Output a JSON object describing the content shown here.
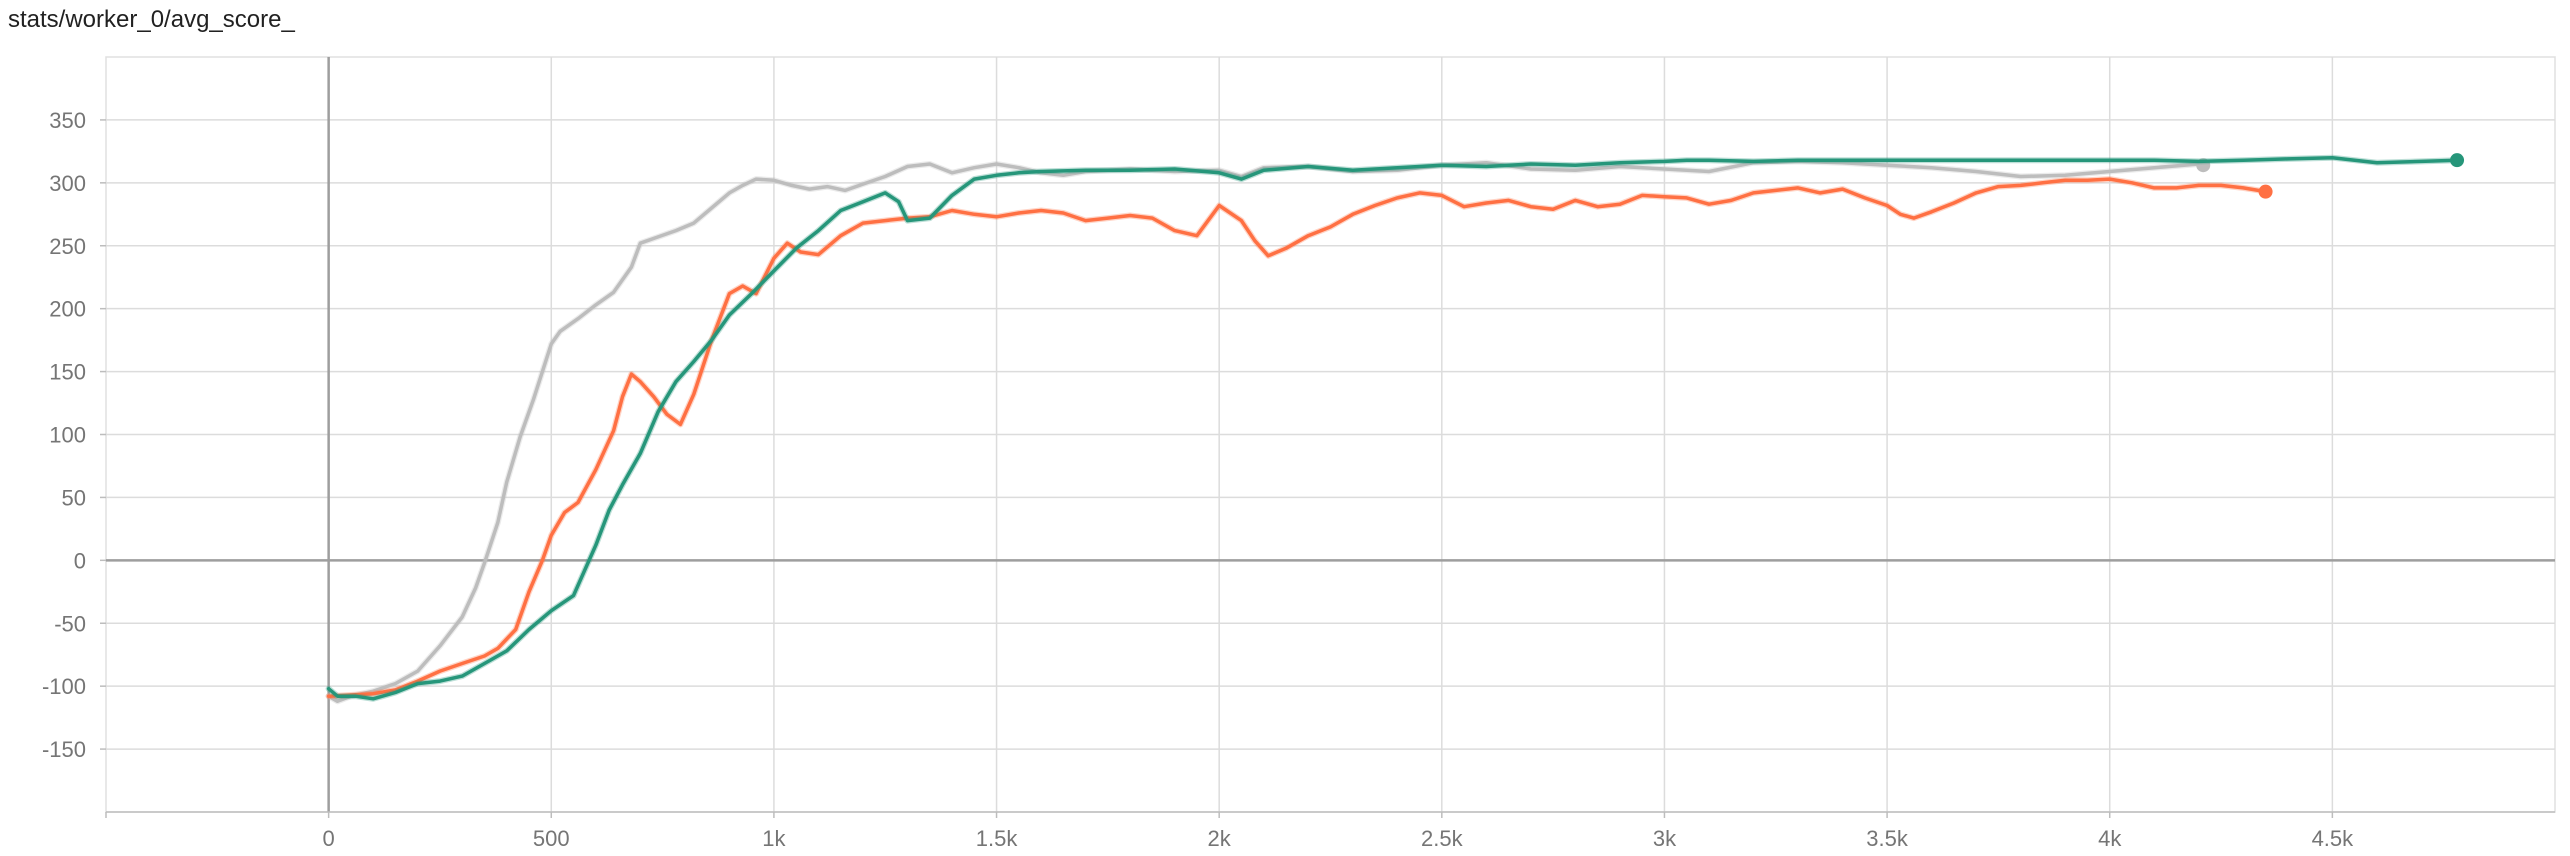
{
  "chart_title": "stats/worker_0/avg_score_",
  "chart_data": {
    "type": "line",
    "title": "stats/worker_0/avg_score_",
    "xlabel": "",
    "ylabel": "",
    "xlim": [
      -500,
      5000
    ],
    "ylim": [
      -200,
      400
    ],
    "grid": true,
    "legend": "none",
    "x_ticks": [
      0,
      500,
      1000,
      1500,
      2000,
      2500,
      3000,
      3500,
      4000,
      4500
    ],
    "x_tick_labels": [
      "0",
      "500",
      "1k",
      "1.5k",
      "2k",
      "2.5k",
      "3k",
      "3.5k",
      "4k",
      "4.5k"
    ],
    "y_ticks": [
      -150,
      -100,
      -50,
      0,
      50,
      100,
      150,
      200,
      250,
      300,
      350
    ],
    "y_tick_labels": [
      "-150",
      "-100",
      "-50",
      "0",
      "50",
      "100",
      "150",
      "200",
      "250",
      "300",
      "350"
    ],
    "series": [
      {
        "color": "#bdbdbd",
        "end_marker": true,
        "points": [
          [
            0,
            -108
          ],
          [
            20,
            -112
          ],
          [
            50,
            -108
          ],
          [
            100,
            -104
          ],
          [
            150,
            -98
          ],
          [
            200,
            -88
          ],
          [
            250,
            -68
          ],
          [
            300,
            -45
          ],
          [
            330,
            -22
          ],
          [
            350,
            -2
          ],
          [
            380,
            30
          ],
          [
            400,
            62
          ],
          [
            430,
            98
          ],
          [
            460,
            128
          ],
          [
            480,
            150
          ],
          [
            500,
            172
          ],
          [
            520,
            182
          ],
          [
            560,
            192
          ],
          [
            600,
            203
          ],
          [
            640,
            213
          ],
          [
            680,
            233
          ],
          [
            700,
            252
          ],
          [
            740,
            257
          ],
          [
            780,
            262
          ],
          [
            820,
            268
          ],
          [
            860,
            280
          ],
          [
            900,
            292
          ],
          [
            930,
            298
          ],
          [
            960,
            303
          ],
          [
            1000,
            302
          ],
          [
            1040,
            298
          ],
          [
            1080,
            295
          ],
          [
            1120,
            297
          ],
          [
            1160,
            294
          ],
          [
            1200,
            299
          ],
          [
            1250,
            305
          ],
          [
            1300,
            313
          ],
          [
            1350,
            315
          ],
          [
            1400,
            308
          ],
          [
            1450,
            312
          ],
          [
            1500,
            315
          ],
          [
            1550,
            312
          ],
          [
            1600,
            308
          ],
          [
            1650,
            306
          ],
          [
            1700,
            309
          ],
          [
            1800,
            311
          ],
          [
            1900,
            309
          ],
          [
            2000,
            310
          ],
          [
            2050,
            305
          ],
          [
            2100,
            312
          ],
          [
            2200,
            313
          ],
          [
            2300,
            309
          ],
          [
            2400,
            310
          ],
          [
            2500,
            314
          ],
          [
            2600,
            316
          ],
          [
            2700,
            311
          ],
          [
            2800,
            310
          ],
          [
            2900,
            313
          ],
          [
            3000,
            311
          ],
          [
            3100,
            309
          ],
          [
            3200,
            316
          ],
          [
            3300,
            317
          ],
          [
            3400,
            316
          ],
          [
            3500,
            314
          ],
          [
            3600,
            312
          ],
          [
            3700,
            309
          ],
          [
            3800,
            305
          ],
          [
            3900,
            306
          ],
          [
            4000,
            309
          ],
          [
            4100,
            312
          ],
          [
            4200,
            315
          ],
          [
            4210,
            314
          ]
        ]
      },
      {
        "color": "#ff7043",
        "end_marker": true,
        "points": [
          [
            0,
            -108
          ],
          [
            50,
            -107
          ],
          [
            100,
            -106
          ],
          [
            150,
            -103
          ],
          [
            200,
            -96
          ],
          [
            250,
            -88
          ],
          [
            300,
            -82
          ],
          [
            350,
            -76
          ],
          [
            380,
            -70
          ],
          [
            420,
            -55
          ],
          [
            450,
            -25
          ],
          [
            480,
            0
          ],
          [
            500,
            20
          ],
          [
            530,
            38
          ],
          [
            560,
            46
          ],
          [
            600,
            72
          ],
          [
            640,
            103
          ],
          [
            660,
            130
          ],
          [
            680,
            148
          ],
          [
            700,
            142
          ],
          [
            730,
            130
          ],
          [
            760,
            116
          ],
          [
            790,
            108
          ],
          [
            820,
            132
          ],
          [
            860,
            175
          ],
          [
            900,
            212
          ],
          [
            930,
            218
          ],
          [
            960,
            212
          ],
          [
            1000,
            240
          ],
          [
            1030,
            252
          ],
          [
            1060,
            245
          ],
          [
            1100,
            243
          ],
          [
            1150,
            258
          ],
          [
            1200,
            268
          ],
          [
            1250,
            270
          ],
          [
            1300,
            272
          ],
          [
            1350,
            273
          ],
          [
            1400,
            278
          ],
          [
            1450,
            275
          ],
          [
            1500,
            273
          ],
          [
            1550,
            276
          ],
          [
            1600,
            278
          ],
          [
            1650,
            276
          ],
          [
            1700,
            270
          ],
          [
            1750,
            272
          ],
          [
            1800,
            274
          ],
          [
            1850,
            272
          ],
          [
            1900,
            262
          ],
          [
            1950,
            258
          ],
          [
            2000,
            282
          ],
          [
            2050,
            270
          ],
          [
            2080,
            254
          ],
          [
            2110,
            242
          ],
          [
            2150,
            248
          ],
          [
            2200,
            258
          ],
          [
            2250,
            265
          ],
          [
            2300,
            275
          ],
          [
            2350,
            282
          ],
          [
            2400,
            288
          ],
          [
            2450,
            292
          ],
          [
            2500,
            290
          ],
          [
            2550,
            281
          ],
          [
            2600,
            284
          ],
          [
            2650,
            286
          ],
          [
            2700,
            281
          ],
          [
            2750,
            279
          ],
          [
            2800,
            286
          ],
          [
            2850,
            281
          ],
          [
            2900,
            283
          ],
          [
            2950,
            290
          ],
          [
            3000,
            289
          ],
          [
            3050,
            288
          ],
          [
            3100,
            283
          ],
          [
            3150,
            286
          ],
          [
            3200,
            292
          ],
          [
            3250,
            294
          ],
          [
            3300,
            296
          ],
          [
            3350,
            292
          ],
          [
            3400,
            295
          ],
          [
            3450,
            288
          ],
          [
            3500,
            282
          ],
          [
            3530,
            275
          ],
          [
            3560,
            272
          ],
          [
            3600,
            277
          ],
          [
            3650,
            284
          ],
          [
            3700,
            292
          ],
          [
            3750,
            297
          ],
          [
            3800,
            298
          ],
          [
            3850,
            300
          ],
          [
            3900,
            302
          ],
          [
            3950,
            302
          ],
          [
            4000,
            303
          ],
          [
            4050,
            300
          ],
          [
            4100,
            296
          ],
          [
            4150,
            296
          ],
          [
            4200,
            298
          ],
          [
            4250,
            298
          ],
          [
            4300,
            296
          ],
          [
            4350,
            293
          ]
        ]
      },
      {
        "color": "#26967a",
        "end_marker": true,
        "points": [
          [
            0,
            -102
          ],
          [
            20,
            -108
          ],
          [
            60,
            -108
          ],
          [
            100,
            -110
          ],
          [
            150,
            -105
          ],
          [
            200,
            -98
          ],
          [
            250,
            -96
          ],
          [
            300,
            -92
          ],
          [
            350,
            -82
          ],
          [
            400,
            -72
          ],
          [
            450,
            -55
          ],
          [
            500,
            -40
          ],
          [
            550,
            -28
          ],
          [
            600,
            12
          ],
          [
            630,
            40
          ],
          [
            660,
            60
          ],
          [
            700,
            85
          ],
          [
            740,
            118
          ],
          [
            780,
            142
          ],
          [
            820,
            158
          ],
          [
            860,
            175
          ],
          [
            900,
            195
          ],
          [
            950,
            212
          ],
          [
            1000,
            230
          ],
          [
            1050,
            248
          ],
          [
            1100,
            262
          ],
          [
            1150,
            278
          ],
          [
            1200,
            285
          ],
          [
            1250,
            292
          ],
          [
            1280,
            285
          ],
          [
            1300,
            270
          ],
          [
            1350,
            272
          ],
          [
            1400,
            290
          ],
          [
            1450,
            303
          ],
          [
            1500,
            306
          ],
          [
            1550,
            308
          ],
          [
            1600,
            309
          ],
          [
            1700,
            310
          ],
          [
            1800,
            310
          ],
          [
            1900,
            311
          ],
          [
            2000,
            308
          ],
          [
            2050,
            303
          ],
          [
            2100,
            310
          ],
          [
            2200,
            313
          ],
          [
            2300,
            310
          ],
          [
            2400,
            312
          ],
          [
            2500,
            314
          ],
          [
            2600,
            313
          ],
          [
            2700,
            315
          ],
          [
            2800,
            314
          ],
          [
            2900,
            316
          ],
          [
            3000,
            317
          ],
          [
            3050,
            318
          ],
          [
            3100,
            318
          ],
          [
            3200,
            317
          ],
          [
            3300,
            318
          ],
          [
            3500,
            318
          ],
          [
            3700,
            318
          ],
          [
            3900,
            318
          ],
          [
            4100,
            318
          ],
          [
            4200,
            317
          ],
          [
            4300,
            318
          ],
          [
            4400,
            319
          ],
          [
            4500,
            320
          ],
          [
            4550,
            318
          ],
          [
            4600,
            316
          ],
          [
            4700,
            317
          ],
          [
            4780,
            318
          ]
        ]
      }
    ]
  }
}
